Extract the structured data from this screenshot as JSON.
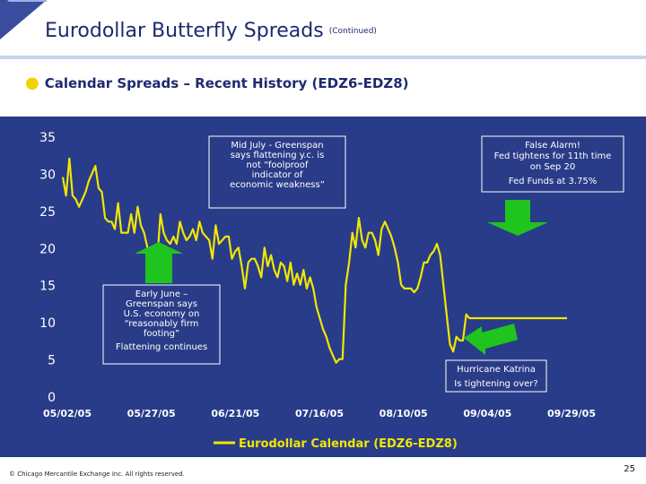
{
  "slide": {
    "title": "Eurodollar Butterfly Spreads",
    "title_note": "(Continued)",
    "subtitle": "Calendar Spreads – Recent History (EDZ6-EDZ8)",
    "footer": "© Chicago Mercantile Exchange Inc. All rights reserved.",
    "page_number": "25"
  },
  "colors": {
    "title": "#1e2a6e",
    "line": "#f2e600",
    "arrow": "#1fc41f",
    "chart_bg": "#283c8a",
    "axis_text": "#ffffff",
    "box_bg": "#2a3c88"
  },
  "chart_data": {
    "type": "line",
    "title": "",
    "xlabel": "",
    "ylabel": "",
    "ylim": [
      0,
      35
    ],
    "yticks": [
      "0",
      "5",
      "10",
      "15",
      "20",
      "25",
      "30",
      "35"
    ],
    "xtick_labels": [
      "05/02/05",
      "05/27/05",
      "06/21/05",
      "07/16/05",
      "08/10/05",
      "09/04/05",
      "09/29/05"
    ],
    "legend": "Eurodollar Calendar (EDZ6-EDZ8)",
    "series": [
      {
        "name": "Eurodollar Calendar (EDZ6-EDZ8)",
        "x": [
          0,
          1,
          2,
          3,
          4,
          5,
          6,
          7,
          8,
          9,
          10,
          11,
          12,
          13,
          14,
          15,
          16,
          17,
          18,
          19,
          20,
          21,
          22,
          23,
          24,
          25,
          26,
          27,
          28,
          29,
          30,
          31,
          32,
          33,
          34,
          35,
          36,
          37,
          38,
          39,
          40,
          41,
          42,
          43,
          44,
          45,
          46,
          47,
          48,
          49,
          50,
          51,
          52,
          53,
          54,
          55,
          56,
          57,
          58,
          59,
          60,
          61,
          62,
          63,
          64,
          65,
          66,
          67,
          68,
          69,
          70,
          71,
          72,
          73,
          74,
          75,
          76,
          77,
          78,
          79,
          80,
          81,
          82,
          83,
          84,
          85,
          86,
          87,
          88,
          89,
          90,
          91,
          92,
          93,
          94,
          95,
          96,
          97,
          98,
          99,
          100,
          101,
          102,
          103,
          104,
          105,
          106,
          107,
          108,
          109,
          110,
          111,
          112,
          113,
          114,
          115,
          116,
          117,
          118,
          119,
          120,
          121,
          122,
          123,
          124,
          125,
          126,
          127,
          128,
          129,
          130,
          131,
          132,
          133,
          134,
          135,
          136,
          137,
          138,
          139,
          140,
          141,
          142,
          143,
          144,
          145,
          146,
          147,
          148,
          149,
          150,
          151,
          152,
          153,
          154,
          155
        ],
        "values": [
          29.5,
          27,
          32,
          27,
          26.5,
          25.5,
          26.5,
          27.5,
          29,
          30,
          31,
          28,
          27.5,
          24,
          23.5,
          23.5,
          22.5,
          26,
          22,
          22,
          22,
          24.5,
          22,
          25.5,
          23,
          22,
          20,
          17,
          16.5,
          18,
          24.5,
          22,
          21,
          20.5,
          21.5,
          20.5,
          23.5,
          22,
          21,
          21.5,
          22.5,
          21,
          23.5,
          22,
          21.5,
          21,
          18.5,
          23,
          20.5,
          21,
          21.5,
          21.5,
          18.5,
          19.5,
          20,
          17.5,
          14.5,
          18,
          18.5,
          18.5,
          17.5,
          16,
          20,
          17.5,
          19,
          17,
          16,
          18,
          17.5,
          15.5,
          18,
          15,
          16.5,
          15,
          17,
          14.5,
          16,
          14.5,
          12,
          10.5,
          9,
          8,
          6.5,
          5.5,
          4.5,
          5,
          5,
          15,
          18,
          22,
          20,
          24,
          21,
          20,
          22,
          22,
          21,
          19,
          22.5,
          23.5,
          22.5,
          21.5,
          20,
          18,
          15,
          14.5,
          14.5,
          14.5,
          14,
          14.5,
          16,
          18,
          18,
          19,
          19.5,
          20.5,
          19,
          15,
          11,
          7,
          6,
          8,
          7.5,
          7.5,
          11,
          10.5,
          10.5,
          10.5,
          10.5,
          10.5,
          10.5,
          10.5,
          10.5,
          10.5,
          10.5,
          10.5,
          10.5,
          10.5,
          10.5,
          10.5,
          10.5,
          10.5,
          10.5,
          10.5,
          10.5,
          10.5,
          10.5,
          10.5,
          10.5,
          10.5,
          10.5,
          10.5,
          10.5,
          10.5,
          10.5,
          10.5
        ]
      }
    ],
    "annotations": [
      {
        "id": "mid-july",
        "lines": [
          "Mid July - Greenspan",
          "says flattening y.c. is",
          "not “foolproof",
          "indicator of",
          "economic weakness”"
        ]
      },
      {
        "id": "false-alarm",
        "lines": [
          "False Alarm!",
          "Fed tightens for 11th time",
          "on Sep 20",
          "Fed Funds at 3.75%"
        ]
      },
      {
        "id": "early-june",
        "lines": [
          "Early June –",
          "Greenspan says",
          "U.S. economy on",
          "“reasonably firm",
          "footing”",
          "Flattening continues"
        ]
      },
      {
        "id": "katrina",
        "lines": [
          "Hurricane Katrina",
          "Is tightening over?"
        ]
      }
    ]
  }
}
